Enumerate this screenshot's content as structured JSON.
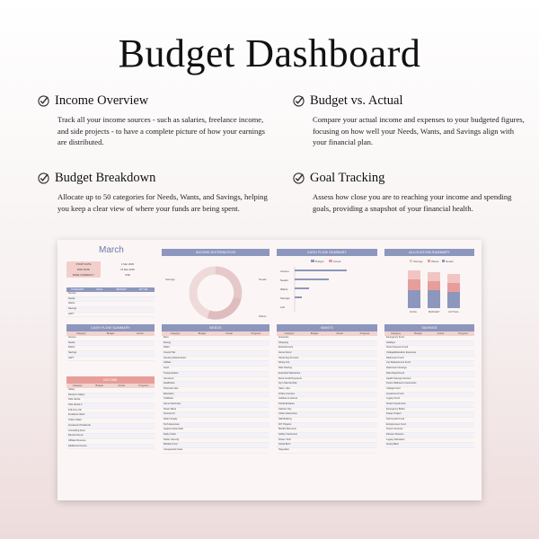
{
  "title": "Budget Dashboard",
  "features": [
    {
      "title": "Income Overview",
      "desc": "Track all your income sources - such as salaries, freelance income, and side projects - to have a complete picture of how your earnings are distributed."
    },
    {
      "title": "Budget vs. Actual",
      "desc": "Compare your actual income and expenses to your budgeted figures, focusing on how well your Needs, Wants, and Savings align with your financial plan."
    },
    {
      "title": "Budget Breakdown",
      "desc": "Allocate up to 50 categories for Needs, Wants, and Savings, helping you keep a clear view of where your funds are being spent."
    },
    {
      "title": "Goal Tracking",
      "desc": "Assess how close you are to reaching your income and spending goals, providing a snapshot of your financial health."
    }
  ],
  "dashboard": {
    "month": "March",
    "start_date_label": "START DATE",
    "start_date": "1 Mar 2026",
    "end_date_label": "END DATE",
    "end_date": "31 Mar 2026",
    "currency_label": "BASE CURRENCY",
    "currency": "USD",
    "income_distribution": "INCOME DISTRIBUTION",
    "cashflow_summary": "CASH FLOW SUMMARY",
    "allocation_summary": "ALLOCATION SUMMARY",
    "needs": "NEEDS",
    "wants": "WANTS",
    "savings": "SAVINGS",
    "income": "INCOME",
    "col_category": "Category",
    "col_budget": "Budget",
    "col_actual": "Actual",
    "col_progress": "Progress",
    "legend_budget": "Budget",
    "legend_actual": "Actual",
    "legend_savings": "Savings",
    "legend_wants": "Wants",
    "legend_needs": "Needs",
    "alloc_x": [
      "GOAL",
      "BUDGET",
      "ACTUAL"
    ],
    "donut_labels": [
      "Savings",
      "Needs",
      "Wants"
    ],
    "cf_labels": [
      "Income",
      "Needs",
      "Wants",
      "Savings",
      "Left"
    ],
    "needs_rows": [
      "Rent",
      "Energy",
      "Water",
      "Council Tax",
      "Housing Maintenance",
      "Utilities",
      "Food",
      "Transportation",
      "Insurance",
      "Healthcare",
      "Personal Care",
      "Education",
      "Childcare",
      "Home Sanctuary",
      "Power Bank",
      "Sunned Air",
      "Water Supply",
      "Tech Expenses",
      "Hygiene Essentials",
      "Daily Cotton",
      "Flatter Security",
      "Mobility Fund",
      "Unexpected Costs"
    ],
    "wants_rows": [
      "Groceries",
      "Shopping",
      "Entertainment",
      "Home Decor",
      "Streaming Services",
      "Dining Out",
      "Ride Sharing",
      "Extended Warranties",
      "Extra Credit Payments",
      "Gym Membership",
      "Salon, Spa",
      "Online Courses",
      "Hobbies & Leisure",
      "Social Escapes",
      "Fashion Pay",
      "Urban Adventures",
      "Skill Building",
      "DIY Projects",
      "Mindful Moments",
      "Hobby Investment",
      "Dream Tech",
      "Social Buzz",
      "Staycation"
    ],
    "savings_rows": [
      "Emergency Fund",
      "Holidays",
      "Down Payment Fund",
      "College/Education Expenses",
      "Retirement Fund",
      "Car Replacement Fund",
      "Retirement Savings",
      "Debt Payoff Fund",
      "Health Savings Account",
      "Future Wellness Investments",
      "College Fund",
      "Investment Fund",
      "Legacy Fund",
      "Smart Investments",
      "Emergency Buffer",
      "Dream Project",
      "Self Growth Fund",
      "Entrepreneur Fund",
      "Future Ventures",
      "Passive Streams",
      "Legacy Education",
      "Giving Back"
    ],
    "income_rows": [
      "Salary",
      "Partner's Salary",
      "Side Hustle",
      "Side Hustle 2",
      "Full-time Job",
      "Freelance Work",
      "Online Sales",
      "Investment Dividends",
      "Consulting Fees",
      "Rental Income",
      "Affiliate Revenue",
      "Additional Income"
    ],
    "summary_rows": [
      "Income",
      "Needs",
      "Wants",
      "Savings",
      "LEFT"
    ],
    "summary_head": [
      "CATEGORY",
      "GOAL",
      "BUDGET",
      "ACTUAL"
    ]
  }
}
